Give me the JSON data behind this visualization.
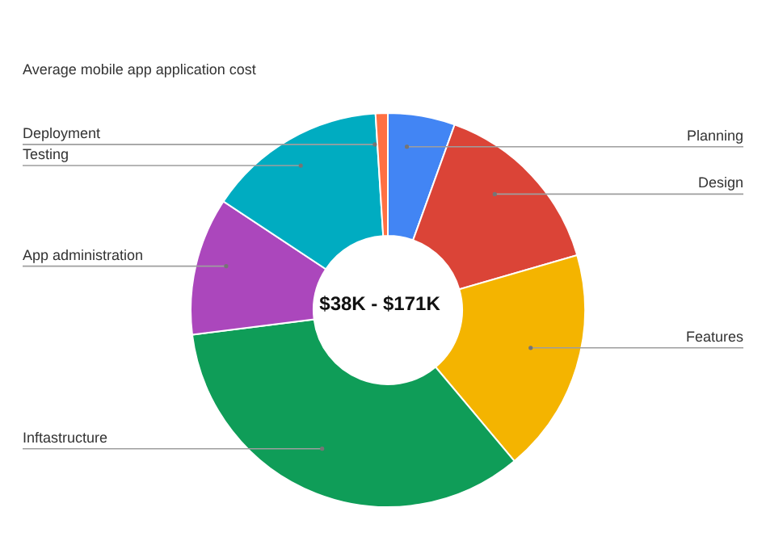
{
  "chart_data": {
    "type": "donut",
    "title": "Average mobile app application cost",
    "categories": [
      "Planning",
      "Design",
      "Features",
      "Inftastructure",
      "App administration",
      "Testing",
      "Deployment"
    ],
    "values": [
      5.5,
      15,
      18.4,
      34.1,
      11.3,
      14.7,
      1
    ],
    "colors": [
      "#4285f4",
      "#db4437",
      "#f4b400",
      "#0f9d58",
      "#ab47bc",
      "#00acc1",
      "#ff7043"
    ],
    "annotations": [
      "$38K - $171K"
    ]
  }
}
